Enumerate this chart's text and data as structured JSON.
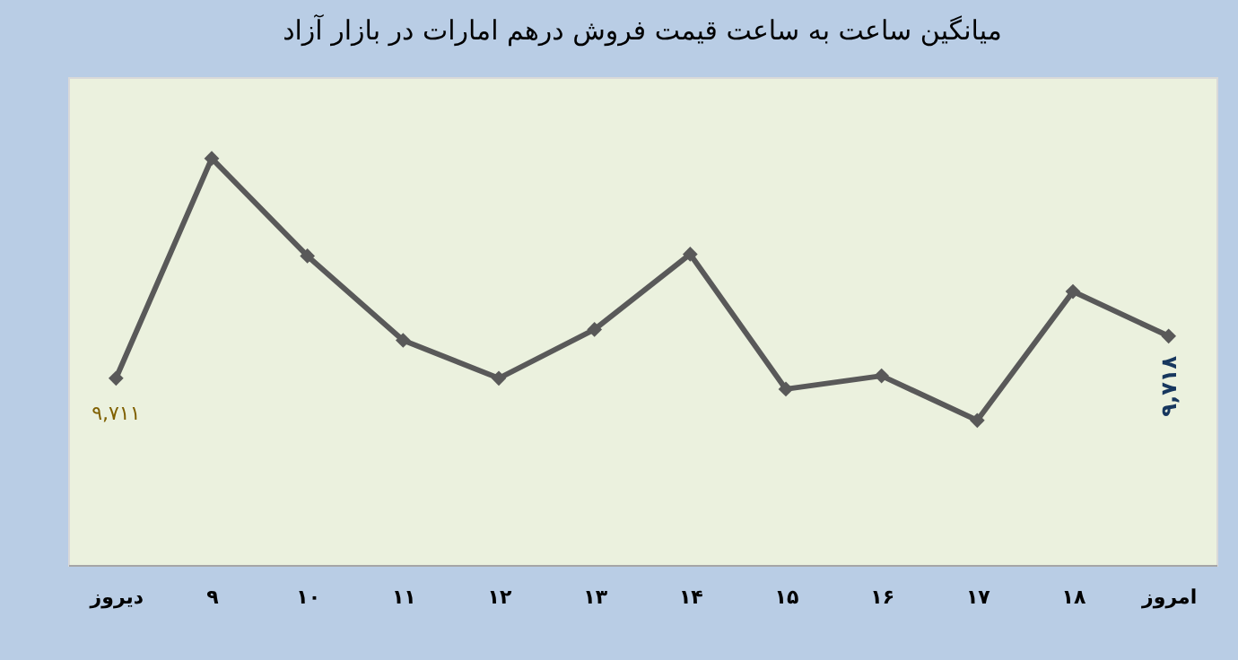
{
  "chart_data": {
    "type": "line",
    "title": "میانگین ساعت به ساعت قیمت فروش درهم امارات در بازار آزاد",
    "categories": [
      "دیروز",
      "۹",
      "۱۰",
      "۱۱",
      "۱۲",
      "۱۳",
      "۱۴",
      "۱۵",
      "۱۶",
      "۱۷",
      "۱۸",
      "امروز"
    ],
    "series": [
      {
        "color": "#595959",
        "values": [
          9711,
          9747.5,
          9731.3,
          9717.3,
          9711,
          9719.1,
          9731.6,
          9709.2,
          9711.4,
          9704,
          9725.4,
          9718
        ],
        "value_labels": [
          "۹,۷۱۱",
          null,
          null,
          null,
          null,
          null,
          null,
          null,
          null,
          null,
          null,
          "۹,۷۱۸"
        ]
      }
    ],
    "ylim": [
      9680,
      9761
    ],
    "tick_labels": "x",
    "marker": "diamond",
    "grid": false
  }
}
